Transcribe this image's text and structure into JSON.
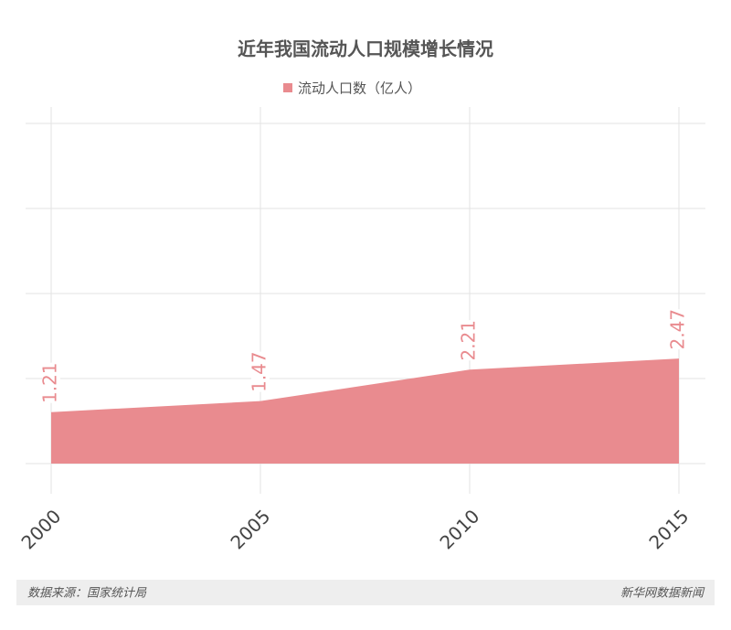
{
  "chart_data": {
    "type": "area",
    "title": "近年我国流动人口规模增长情况",
    "categories": [
      "2000",
      "2005",
      "2010",
      "2015"
    ],
    "series": [
      {
        "name": "流动人口数（亿人）",
        "color": "#e98b8f",
        "values": [
          1.21,
          1.47,
          2.21,
          2.47
        ]
      }
    ],
    "ylim": [
      0,
      8
    ],
    "yticks": [
      0,
      2,
      4,
      6,
      8
    ],
    "grid": true,
    "source": "数据来源：国家统计局",
    "credit": "新华网数据新闻"
  }
}
